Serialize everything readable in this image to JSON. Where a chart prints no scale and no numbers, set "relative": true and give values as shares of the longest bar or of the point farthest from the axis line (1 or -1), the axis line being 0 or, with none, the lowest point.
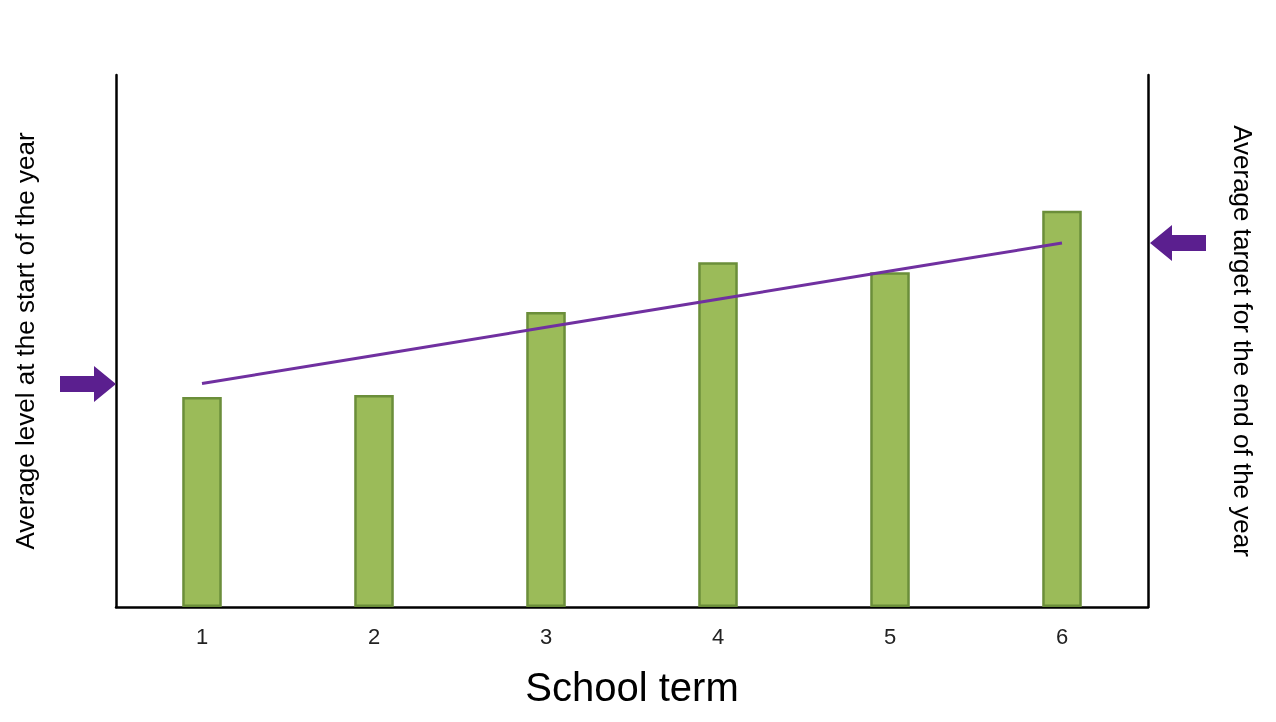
{
  "chart_data": {
    "type": "bar",
    "relative": true,
    "xlabel": "School term",
    "ylabel": "Average level at the start of the year",
    "y2label": "Average target for the end of the year",
    "categories": [
      "1",
      "2",
      "3",
      "4",
      "5",
      "6"
    ],
    "series": [
      {
        "color": "#9bbb59",
        "values": [
          0.53,
          0.535,
          0.745,
          0.87,
          0.845,
          1.0
        ]
      },
      {
        "type": "line",
        "color": "#7030a0",
        "values": [
          0.564,
          0.635,
          0.706,
          0.777,
          0.848,
          0.919
        ]
      }
    ],
    "tick_labels": "x",
    "grid": false,
    "marker": "none",
    "line_style": "solid"
  }
}
